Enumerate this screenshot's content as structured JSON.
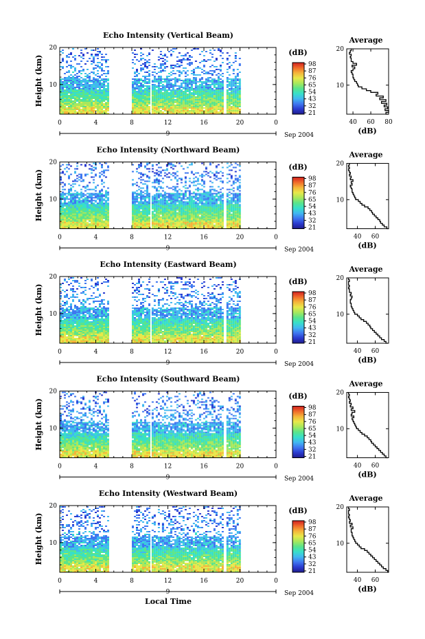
{
  "colorbar": {
    "unit": "(dB)",
    "stops": [
      "#1f1c8c",
      "#2b3bd0",
      "#3f78f0",
      "#41b8f0",
      "#37e0c8",
      "#5be48a",
      "#a8e85c",
      "#e8e84a",
      "#f5b43a",
      "#f06a2a",
      "#d02020"
    ]
  },
  "date_label": "Sep 2004",
  "xlabel_bottom": "Local Time",
  "chart_data": [
    {
      "type": "heatmap",
      "title": "Echo Intensity (Vertical Beam)",
      "ylabel": "Height (km)",
      "x_ticks": [
        "0",
        "4",
        "8",
        "12",
        "16",
        "20",
        "0"
      ],
      "day_label": "9",
      "y_ticks": [
        "20",
        "10"
      ],
      "colorbar_ticks": [
        "98",
        "87",
        "76",
        "65",
        "54",
        "43",
        "32",
        "21"
      ],
      "profile": {
        "title": "Average",
        "xlabel": "(dB)",
        "x_ticks": [
          "40",
          "60",
          "80"
        ],
        "xlim": [
          33,
          80
        ],
        "y_ticks": [
          "20",
          "10"
        ],
        "ylim": [
          2,
          20
        ],
        "height_km": [
          2,
          2.5,
          3,
          3.5,
          4,
          4.5,
          5,
          5.5,
          6,
          6.5,
          7,
          7.5,
          8,
          8.5,
          9,
          9.5,
          10,
          10.5,
          11,
          11.5,
          12,
          12.5,
          13,
          13.5,
          14,
          14.5,
          15,
          15.5,
          16,
          16.5,
          17,
          17.5,
          18,
          18.5,
          19,
          19.5,
          20
        ],
        "intensity_db": [
          80,
          77,
          80,
          76,
          79,
          75,
          78,
          72,
          77,
          70,
          74,
          66,
          68,
          60,
          55,
          50,
          46,
          45,
          44,
          42,
          41,
          40,
          40,
          39,
          38,
          40,
          42,
          39,
          44,
          40,
          38,
          38,
          37,
          38,
          36,
          37,
          38
        ]
      }
    },
    {
      "type": "heatmap",
      "title": "Echo Intensity (Northward Beam)",
      "ylabel": "Height (km)",
      "x_ticks": [
        "0",
        "4",
        "8",
        "12",
        "16",
        "20",
        "0"
      ],
      "day_label": "9",
      "y_ticks": [
        "20",
        "10"
      ],
      "colorbar_ticks": [
        "98",
        "87",
        "76",
        "65",
        "54",
        "43",
        "32",
        "21"
      ],
      "profile": {
        "title": "Average",
        "xlabel": "(dB)",
        "x_ticks": [
          "40",
          "60"
        ],
        "xlim": [
          28,
          75
        ],
        "y_ticks": [
          "20",
          "10"
        ],
        "ylim": [
          2,
          20
        ],
        "height_km": [
          2,
          2.5,
          3,
          3.5,
          4,
          4.5,
          5,
          5.5,
          6,
          6.5,
          7,
          7.5,
          8,
          8.5,
          9,
          9.5,
          10,
          10.5,
          11,
          11.5,
          12,
          12.5,
          13,
          13.5,
          14,
          14.5,
          15,
          15.5,
          16,
          16.5,
          17,
          17.5,
          18,
          18.5,
          19,
          19.5,
          20
        ],
        "intensity_db": [
          75,
          73,
          70,
          68,
          66,
          65,
          63,
          61,
          59,
          57,
          56,
          54,
          52,
          48,
          45,
          43,
          41,
          38,
          37,
          36,
          35,
          34,
          34,
          33,
          32,
          34,
          33,
          35,
          32,
          33,
          31,
          32,
          31,
          30,
          31,
          30,
          31
        ]
      }
    },
    {
      "type": "heatmap",
      "title": "Echo Intensity (Eastward Beam)",
      "ylabel": "Height (km)",
      "x_ticks": [
        "0",
        "4",
        "8",
        "12",
        "16",
        "20",
        "0"
      ],
      "day_label": "9",
      "y_ticks": [
        "20",
        "10"
      ],
      "colorbar_ticks": [
        "98",
        "87",
        "76",
        "65",
        "54",
        "43",
        "32",
        "21"
      ],
      "profile": {
        "title": "Average",
        "xlabel": "(dB)",
        "x_ticks": [
          "40",
          "60"
        ],
        "xlim": [
          28,
          75
        ],
        "y_ticks": [
          "20",
          "10"
        ],
        "ylim": [
          2,
          20
        ],
        "height_km": [
          2,
          2.5,
          3,
          3.5,
          4,
          4.5,
          5,
          5.5,
          6,
          6.5,
          7,
          7.5,
          8,
          8.5,
          9,
          9.5,
          10,
          10.5,
          11,
          11.5,
          12,
          12.5,
          13,
          13.5,
          14,
          14.5,
          15,
          15.5,
          16,
          16.5,
          17,
          17.5,
          18,
          18.5,
          19,
          19.5,
          20
        ],
        "intensity_db": [
          74,
          72,
          70,
          67,
          65,
          63,
          61,
          59,
          57,
          55,
          54,
          52,
          50,
          47,
          44,
          42,
          40,
          37,
          36,
          35,
          34,
          33,
          33,
          32,
          32,
          33,
          34,
          32,
          33,
          31,
          31,
          30,
          31,
          30,
          30,
          31,
          30
        ]
      }
    },
    {
      "type": "heatmap",
      "title": "Echo Intensity (Southward Beam)",
      "ylabel": "Height (km)",
      "x_ticks": [
        "0",
        "4",
        "8",
        "12",
        "16",
        "20",
        "0"
      ],
      "day_label": "9",
      "y_ticks": [
        "20",
        "10"
      ],
      "colorbar_ticks": [
        "98",
        "87",
        "76",
        "65",
        "54",
        "43",
        "32",
        "21"
      ],
      "profile": {
        "title": "Average",
        "xlabel": "(dB)",
        "x_ticks": [
          "40",
          "60"
        ],
        "xlim": [
          28,
          75
        ],
        "y_ticks": [
          "20",
          "10"
        ],
        "ylim": [
          2,
          20
        ],
        "height_km": [
          2,
          2.5,
          3,
          3.5,
          4,
          4.5,
          5,
          5.5,
          6,
          6.5,
          7,
          7.5,
          8,
          8.5,
          9,
          9.5,
          10,
          10.5,
          11,
          11.5,
          12,
          12.5,
          13,
          13.5,
          14,
          14.5,
          15,
          15.5,
          16,
          16.5,
          17,
          17.5,
          18,
          18.5,
          19,
          19.5,
          20
        ],
        "intensity_db": [
          74,
          72,
          70,
          68,
          66,
          64,
          62,
          60,
          58,
          56,
          55,
          53,
          51,
          48,
          45,
          43,
          41,
          39,
          38,
          37,
          36,
          35,
          34,
          36,
          33,
          34,
          37,
          33,
          35,
          32,
          33,
          31,
          32,
          31,
          30,
          31,
          30
        ]
      }
    },
    {
      "type": "heatmap",
      "title": "Echo Intensity (Westward Beam)",
      "ylabel": "Height (km)",
      "x_ticks": [
        "0",
        "4",
        "8",
        "12",
        "16",
        "20",
        "0"
      ],
      "day_label": "9",
      "y_ticks": [
        "20",
        "10"
      ],
      "colorbar_ticks": [
        "98",
        "87",
        "76",
        "65",
        "54",
        "43",
        "32",
        "21"
      ],
      "profile": {
        "title": "Average",
        "xlabel": "(dB)",
        "x_ticks": [
          "40",
          "60"
        ],
        "xlim": [
          28,
          75
        ],
        "y_ticks": [
          "20",
          "10"
        ],
        "ylim": [
          2,
          20
        ],
        "height_km": [
          2,
          2.5,
          3,
          3.5,
          4,
          4.5,
          5,
          5.5,
          6,
          6.5,
          7,
          7.5,
          8,
          8.5,
          9,
          9.5,
          10,
          10.5,
          11,
          11.5,
          12,
          12.5,
          13,
          13.5,
          14,
          14.5,
          15,
          15.5,
          16,
          16.5,
          17,
          17.5,
          18,
          18.5,
          19,
          19.5,
          20
        ],
        "intensity_db": [
          75,
          74,
          72,
          69,
          67,
          65,
          63,
          61,
          59,
          57,
          55,
          53,
          51,
          48,
          44,
          42,
          40,
          38,
          37,
          36,
          35,
          34,
          34,
          33,
          33,
          35,
          32,
          34,
          31,
          32,
          31,
          30,
          31,
          30,
          30,
          31,
          30
        ]
      }
    }
  ]
}
